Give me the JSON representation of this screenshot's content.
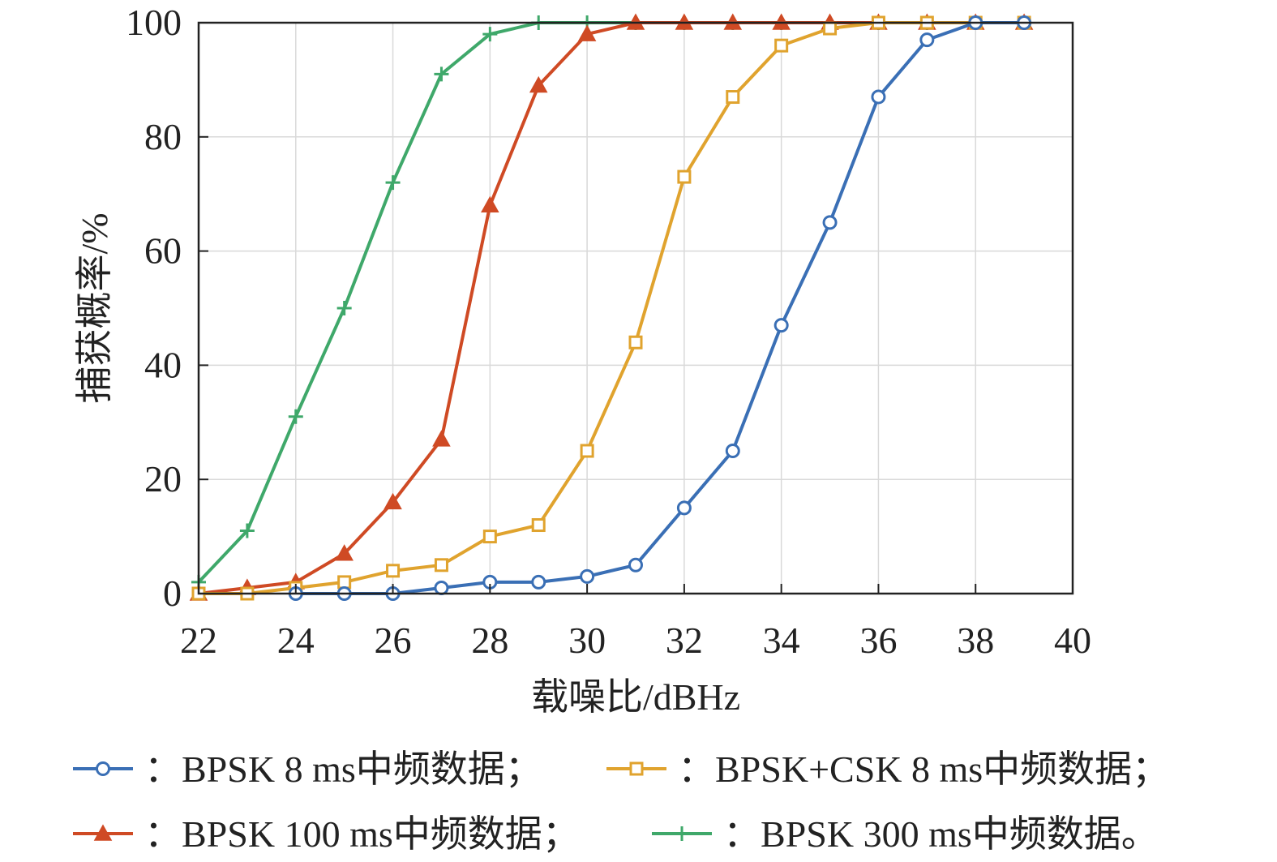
{
  "chart_data": {
    "type": "line",
    "title": "",
    "xlabel": "载噪比/dBHz",
    "ylabel": "捕获概率/%",
    "xlim": [
      22,
      40
    ],
    "ylim": [
      0,
      100
    ],
    "xticks": [
      22,
      24,
      26,
      28,
      30,
      32,
      34,
      36,
      38,
      40
    ],
    "yticks": [
      0,
      20,
      40,
      60,
      80,
      100
    ],
    "grid": true,
    "legend_position": "bottom",
    "series": [
      {
        "name": "BPSK 8 ms中频数据",
        "legend_label": "：BPSK 8 ms中频数据；",
        "color": "#3a6fb5",
        "marker": "circle",
        "x": [
          24,
          25,
          26,
          27,
          28,
          29,
          30,
          31,
          32,
          33,
          34,
          35,
          36,
          37,
          38,
          39
        ],
        "y": [
          0,
          0,
          0,
          1,
          2,
          2,
          3,
          5,
          15,
          25,
          47,
          65,
          87,
          97,
          100,
          100
        ]
      },
      {
        "name": "BPSK+CSK 8 ms中频数据",
        "legend_label": "：BPSK+CSK 8 ms中频数据；",
        "color": "#e0a32e",
        "marker": "square",
        "x": [
          22,
          23,
          24,
          25,
          26,
          27,
          28,
          29,
          30,
          31,
          32,
          33,
          34,
          35,
          36,
          37,
          38,
          39
        ],
        "y": [
          0,
          0,
          1,
          2,
          4,
          5,
          10,
          12,
          25,
          44,
          73,
          87,
          96,
          99,
          100,
          100,
          100,
          100
        ]
      },
      {
        "name": "BPSK 100 ms中频数据",
        "legend_label": "：BPSK 100 ms中频数据；",
        "color": "#cf4a24",
        "marker": "triangle",
        "x": [
          22,
          23,
          24,
          25,
          26,
          27,
          28,
          29,
          30,
          31,
          32,
          33,
          34,
          35,
          36,
          37,
          38,
          39
        ],
        "y": [
          0,
          1,
          2,
          7,
          16,
          27,
          68,
          89,
          98,
          100,
          100,
          100,
          100,
          100,
          100,
          100,
          100,
          100
        ]
      },
      {
        "name": "BPSK 300 ms中频数据",
        "legend_label": "：BPSK 300 ms中频数据。",
        "color": "#3fa86a",
        "marker": "plus",
        "x": [
          22,
          23,
          24,
          25,
          26,
          27,
          28,
          29,
          30,
          31,
          32,
          33,
          34,
          35,
          36,
          37,
          38,
          39
        ],
        "y": [
          2,
          11,
          31,
          50,
          72,
          91,
          98,
          100,
          100,
          100,
          100,
          100,
          100,
          100,
          100,
          100,
          100,
          100
        ]
      }
    ]
  }
}
